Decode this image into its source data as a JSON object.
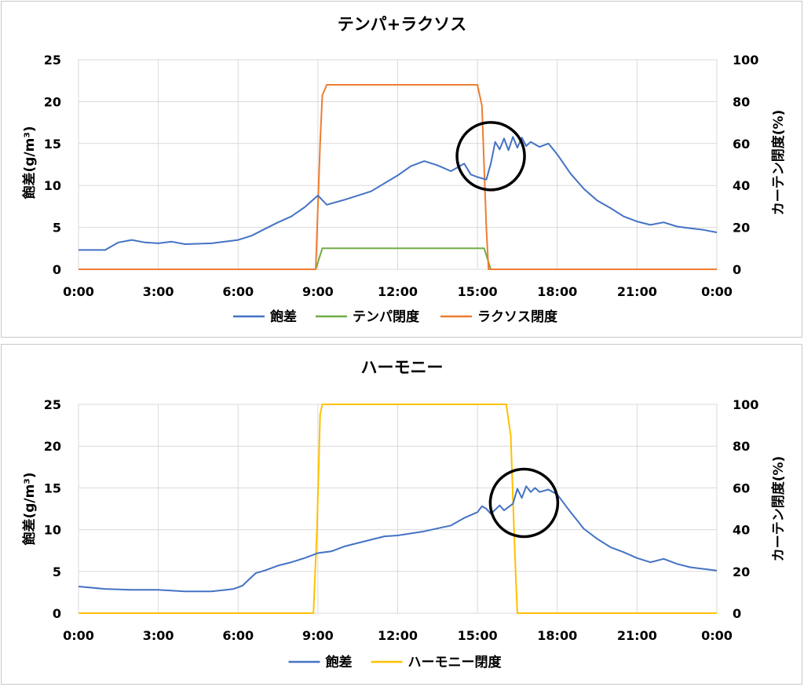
{
  "colors": {
    "saturation_deficit": "#4472C4",
    "tempa": "#70AD47",
    "laxos": "#ED7D31",
    "harmony": "#FFC000",
    "grid": "#D9D9D9"
  },
  "chart_data": [
    {
      "type": "line",
      "title": "テンパ+ラクソス",
      "ylabel": "飽差(g/m³)",
      "y2label": "カーテン閉度(%)",
      "xlabel": "",
      "x_ticks": [
        "0:00",
        "3:00",
        "6:00",
        "9:00",
        "12:00",
        "15:00",
        "18:00",
        "21:00",
        "0:00"
      ],
      "ylim": [
        0,
        25
      ],
      "y_ticks": [
        "0",
        "5",
        "10",
        "15",
        "20",
        "25"
      ],
      "y2lim": [
        0,
        100
      ],
      "y2_ticks": [
        "0",
        "20",
        "40",
        "60",
        "80",
        "100"
      ],
      "grid": true,
      "legend_position": "bottom",
      "annotations": [
        {
          "type": "circle",
          "x": "15:30",
          "y": 13.5
        }
      ],
      "series": [
        {
          "name": "飽差",
          "axis": "left",
          "color": "#4472C4",
          "points": [
            [
              "0:00",
              2.3
            ],
            [
              "1:00",
              2.3
            ],
            [
              "1:30",
              3.2
            ],
            [
              "2:00",
              3.5
            ],
            [
              "2:30",
              3.2
            ],
            [
              "3:00",
              3.1
            ],
            [
              "3:30",
              3.3
            ],
            [
              "4:00",
              3.0
            ],
            [
              "5:00",
              3.1
            ],
            [
              "6:00",
              3.5
            ],
            [
              "6:30",
              4.0
            ],
            [
              "7:00",
              4.8
            ],
            [
              "7:30",
              5.6
            ],
            [
              "8:00",
              6.3
            ],
            [
              "8:30",
              7.4
            ],
            [
              "9:00",
              8.8
            ],
            [
              "9:20",
              7.7
            ],
            [
              "10:00",
              8.3
            ],
            [
              "11:00",
              9.3
            ],
            [
              "12:00",
              11.2
            ],
            [
              "12:30",
              12.3
            ],
            [
              "13:00",
              12.9
            ],
            [
              "13:30",
              12.4
            ],
            [
              "14:00",
              11.7
            ],
            [
              "14:30",
              12.6
            ],
            [
              "14:45",
              11.3
            ],
            [
              "15:00",
              11.0
            ],
            [
              "15:20",
              10.7
            ],
            [
              "15:30",
              12.6
            ],
            [
              "15:40",
              15.2
            ],
            [
              "15:50",
              14.3
            ],
            [
              "16:00",
              15.6
            ],
            [
              "16:10",
              14.2
            ],
            [
              "16:20",
              15.8
            ],
            [
              "16:30",
              14.5
            ],
            [
              "16:40",
              15.7
            ],
            [
              "16:50",
              14.7
            ],
            [
              "17:00",
              15.2
            ],
            [
              "17:20",
              14.6
            ],
            [
              "17:40",
              15.0
            ],
            [
              "18:00",
              13.7
            ],
            [
              "18:30",
              11.4
            ],
            [
              "19:00",
              9.6
            ],
            [
              "19:30",
              8.2
            ],
            [
              "20:00",
              7.3
            ],
            [
              "20:30",
              6.3
            ],
            [
              "21:00",
              5.7
            ],
            [
              "21:30",
              5.3
            ],
            [
              "22:00",
              5.6
            ],
            [
              "22:30",
              5.1
            ],
            [
              "23:00",
              4.9
            ],
            [
              "23:30",
              4.7
            ],
            [
              "24:00",
              4.4
            ]
          ]
        },
        {
          "name": "テンパ閉度",
          "axis": "right",
          "color": "#70AD47",
          "points": [
            [
              "0:00",
              0
            ],
            [
              "8:55",
              0
            ],
            [
              "9:10",
              10
            ],
            [
              "15:00",
              10
            ],
            [
              "15:15",
              10
            ],
            [
              "15:30",
              0
            ],
            [
              "24:00",
              0
            ]
          ]
        },
        {
          "name": "ラクソス閉度",
          "axis": "right",
          "color": "#ED7D31",
          "points": [
            [
              "0:00",
              0
            ],
            [
              "8:55",
              0
            ],
            [
              "9:05",
              60
            ],
            [
              "9:10",
              83
            ],
            [
              "9:20",
              88
            ],
            [
              "15:00",
              88
            ],
            [
              "15:10",
              78
            ],
            [
              "15:20",
              20
            ],
            [
              "15:25",
              0
            ],
            [
              "24:00",
              0
            ]
          ]
        }
      ]
    },
    {
      "type": "line",
      "title": "ハーモニー",
      "ylabel": "飽差(g/m³)",
      "y2label": "カーテン閉度(%)",
      "xlabel": "",
      "x_ticks": [
        "0:00",
        "3:00",
        "6:00",
        "9:00",
        "12:00",
        "15:00",
        "18:00",
        "21:00",
        "0:00"
      ],
      "ylim": [
        0,
        25
      ],
      "y_ticks": [
        "0",
        "5",
        "10",
        "15",
        "20",
        "25"
      ],
      "y2lim": [
        0,
        100
      ],
      "y2_ticks": [
        "0",
        "20",
        "40",
        "60",
        "80",
        "100"
      ],
      "grid": true,
      "legend_position": "bottom",
      "annotations": [
        {
          "type": "circle",
          "x": "16:45",
          "y": 13.2
        }
      ],
      "series": [
        {
          "name": "飽差",
          "axis": "left",
          "color": "#4472C4",
          "points": [
            [
              "0:00",
              3.2
            ],
            [
              "1:00",
              2.9
            ],
            [
              "2:00",
              2.8
            ],
            [
              "3:00",
              2.8
            ],
            [
              "4:00",
              2.6
            ],
            [
              "5:00",
              2.6
            ],
            [
              "5:50",
              2.9
            ],
            [
              "6:10",
              3.3
            ],
            [
              "6:40",
              4.8
            ],
            [
              "7:00",
              5.1
            ],
            [
              "7:30",
              5.7
            ],
            [
              "8:00",
              6.1
            ],
            [
              "8:30",
              6.6
            ],
            [
              "9:00",
              7.2
            ],
            [
              "9:30",
              7.4
            ],
            [
              "10:00",
              8.0
            ],
            [
              "11:00",
              8.8
            ],
            [
              "11:30",
              9.2
            ],
            [
              "12:00",
              9.3
            ],
            [
              "13:00",
              9.8
            ],
            [
              "14:00",
              10.5
            ],
            [
              "14:30",
              11.4
            ],
            [
              "15:00",
              12.1
            ],
            [
              "15:10",
              12.8
            ],
            [
              "15:20",
              12.5
            ],
            [
              "15:30",
              11.9
            ],
            [
              "15:50",
              12.9
            ],
            [
              "16:00",
              12.3
            ],
            [
              "16:20",
              13.1
            ],
            [
              "16:30",
              14.9
            ],
            [
              "16:40",
              13.8
            ],
            [
              "16:50",
              15.2
            ],
            [
              "17:00",
              14.5
            ],
            [
              "17:10",
              15.0
            ],
            [
              "17:20",
              14.5
            ],
            [
              "17:40",
              14.8
            ],
            [
              "18:00",
              14.2
            ],
            [
              "18:30",
              12.1
            ],
            [
              "19:00",
              10.1
            ],
            [
              "19:30",
              8.9
            ],
            [
              "20:00",
              7.9
            ],
            [
              "20:30",
              7.3
            ],
            [
              "21:00",
              6.6
            ],
            [
              "21:30",
              6.1
            ],
            [
              "22:00",
              6.5
            ],
            [
              "22:30",
              5.9
            ],
            [
              "23:00",
              5.5
            ],
            [
              "23:30",
              5.3
            ],
            [
              "24:00",
              5.1
            ]
          ]
        },
        {
          "name": "ハーモニー閉度",
          "axis": "right",
          "color": "#FFC000",
          "points": [
            [
              "0:00",
              0
            ],
            [
              "8:50",
              0
            ],
            [
              "8:58",
              40
            ],
            [
              "9:05",
              95
            ],
            [
              "9:10",
              100
            ],
            [
              "16:05",
              100
            ],
            [
              "16:15",
              85
            ],
            [
              "16:25",
              25
            ],
            [
              "16:30",
              0
            ],
            [
              "24:00",
              0
            ]
          ]
        }
      ]
    }
  ]
}
